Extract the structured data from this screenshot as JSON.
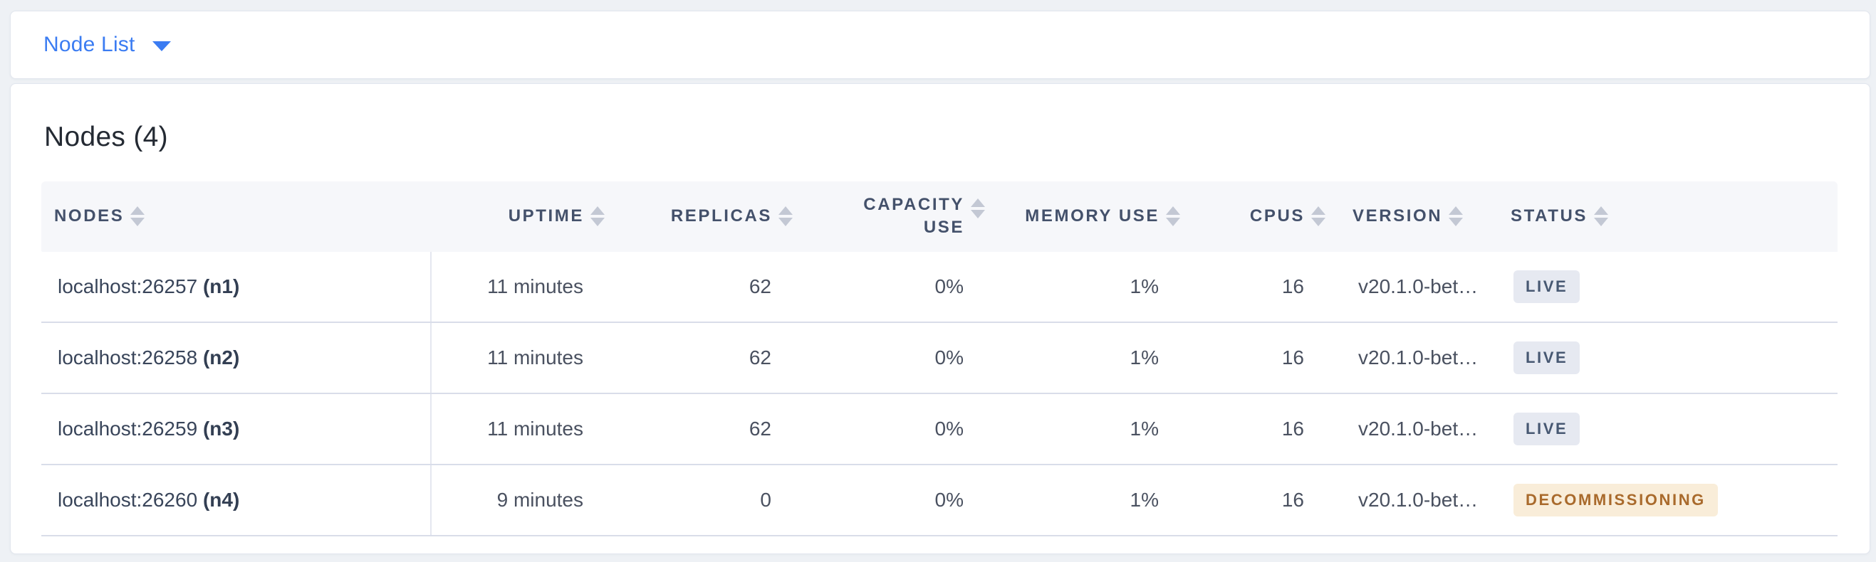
{
  "view_selector": {
    "label": "Node List"
  },
  "nodes_section": {
    "title": "Nodes (4)",
    "table": {
      "columns": [
        {
          "key": "nodes",
          "label": "NODES",
          "align": "left"
        },
        {
          "key": "uptime",
          "label": "UPTIME",
          "align": "right"
        },
        {
          "key": "replicas",
          "label": "REPLICAS",
          "align": "right"
        },
        {
          "key": "capacity_use",
          "label": "CAPACITY USE",
          "align": "right"
        },
        {
          "key": "memory_use",
          "label": "MEMORY USE",
          "align": "right"
        },
        {
          "key": "cpus",
          "label": "CPUS",
          "align": "right"
        },
        {
          "key": "version",
          "label": "VERSION",
          "align": "left"
        },
        {
          "key": "status",
          "label": "STATUS",
          "align": "left"
        }
      ],
      "rows": [
        {
          "node_address": "localhost:26257",
          "node_id": "(n1)",
          "uptime": "11 minutes",
          "replicas": "62",
          "capacity_use": "0%",
          "memory_use": "1%",
          "cpus": "16",
          "version": "v20.1.0-bet…",
          "status": "LIVE",
          "status_type": "live"
        },
        {
          "node_address": "localhost:26258",
          "node_id": "(n2)",
          "uptime": "11 minutes",
          "replicas": "62",
          "capacity_use": "0%",
          "memory_use": "1%",
          "cpus": "16",
          "version": "v20.1.0-bet…",
          "status": "LIVE",
          "status_type": "live"
        },
        {
          "node_address": "localhost:26259",
          "node_id": "(n3)",
          "uptime": "11 minutes",
          "replicas": "62",
          "capacity_use": "0%",
          "memory_use": "1%",
          "cpus": "16",
          "version": "v20.1.0-bet…",
          "status": "LIVE",
          "status_type": "live"
        },
        {
          "node_address": "localhost:26260",
          "node_id": "(n4)",
          "uptime": "9 minutes",
          "replicas": "0",
          "capacity_use": "0%",
          "memory_use": "1%",
          "cpus": "16",
          "version": "v20.1.0-bet…",
          "status": "DECOMMISSIONING",
          "status_type": "decommissioning"
        }
      ]
    }
  },
  "icons": {
    "dropdown_caret": "caret-down-icon",
    "column_sort": "sort-arrows-icon"
  },
  "colors": {
    "page_background": "#eef1f5",
    "accent_blue": "#3b7cf2",
    "header_text": "#44516b",
    "header_background": "#f6f7fa",
    "row_border": "#d9dde9",
    "live_badge_bg": "#e6e9f1",
    "live_badge_text": "#475872",
    "decommissioning_badge_bg": "#f9edd9",
    "decommissioning_badge_text": "#a96a2c"
  }
}
